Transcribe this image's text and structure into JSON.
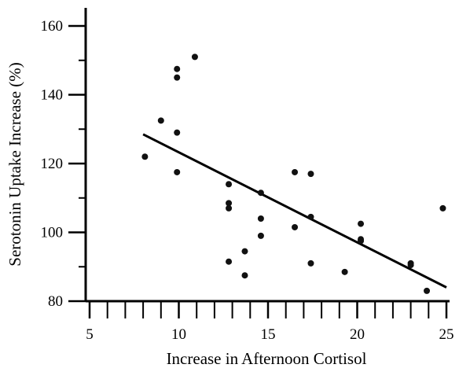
{
  "chart_data": {
    "type": "scatter",
    "title": "",
    "xlabel": "Increase in Afternoon Cortisol",
    "ylabel": "Serotonin Uptake Increase (%)",
    "xlim": [
      5,
      25
    ],
    "ylim": [
      80,
      160
    ],
    "x_ticks": [
      5,
      10,
      15,
      20,
      25
    ],
    "x_minor_ticks": [
      6,
      7,
      8,
      9,
      11,
      12,
      13,
      14,
      16,
      17,
      18,
      19,
      21,
      22,
      23,
      24
    ],
    "y_ticks": [
      80,
      100,
      120,
      140,
      160
    ],
    "y_minor_ticks": [
      90,
      110,
      130,
      150
    ],
    "grid": false,
    "marker_color": "#111111",
    "line_color": "#000000",
    "series": [
      {
        "points": [
          [
            8.1,
            122
          ],
          [
            9.0,
            132.5
          ],
          [
            9.9,
            147.5
          ],
          [
            9.9,
            145
          ],
          [
            9.9,
            129
          ],
          [
            9.9,
            117.5
          ],
          [
            10.9,
            151
          ],
          [
            12.8,
            114
          ],
          [
            12.8,
            108.5
          ],
          [
            12.8,
            107
          ],
          [
            12.8,
            91.5
          ],
          [
            13.7,
            94.5
          ],
          [
            13.7,
            87.5
          ],
          [
            14.6,
            111.5
          ],
          [
            14.6,
            104
          ],
          [
            14.6,
            99
          ],
          [
            16.5,
            117.5
          ],
          [
            16.5,
            101.5
          ],
          [
            17.4,
            117
          ],
          [
            17.4,
            104.5
          ],
          [
            17.4,
            91
          ],
          [
            19.3,
            88.5
          ],
          [
            20.2,
            102.5
          ],
          [
            20.2,
            98
          ],
          [
            20.2,
            97.5
          ],
          [
            23.0,
            91
          ],
          [
            23.0,
            90.5
          ],
          [
            23.9,
            83
          ],
          [
            24.8,
            107
          ]
        ]
      }
    ],
    "trendline": {
      "x": [
        8.0,
        25.0
      ],
      "y": [
        128.5,
        84
      ]
    }
  }
}
